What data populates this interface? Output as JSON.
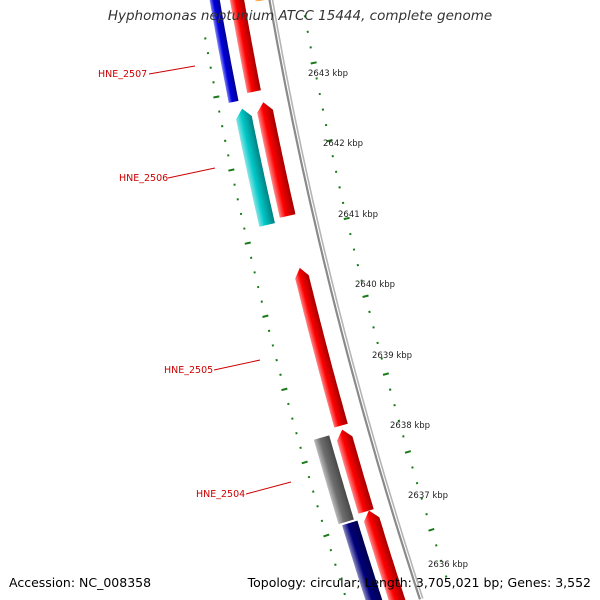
{
  "title": "Hyphomonas neptunium ATCC 15444, complete genome",
  "footer": {
    "accession": "Accession: NC_008358",
    "summary": "Topology: circular; Length: 3,705,021 bp; Genes: 3,552"
  },
  "colors": {
    "forward_gene": "#ff0000",
    "reverse_gene": "#0000e0",
    "reverse_gene_dark": "#00007a",
    "reverse_gene_cyan": "#00c8c8",
    "other_feature": "#6e6e6e",
    "orange_feature": "#ff8c00",
    "gene_label": "#cc0000",
    "scale_ticks": "#1a7a1a",
    "backbone": "#888888"
  },
  "scale": {
    "unit": "kbp",
    "labels": [
      "2643 kbp",
      "2642 kbp",
      "2641 kbp",
      "2640 kbp",
      "2639 kbp",
      "2638 kbp",
      "2637 kbp",
      "2636 kbp"
    ]
  },
  "gene_labels": [
    "HNE_2507",
    "HNE_2506",
    "HNE_2505",
    "HNE_2504"
  ]
}
